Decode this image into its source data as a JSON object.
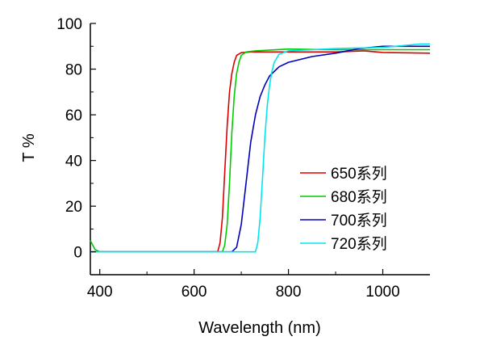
{
  "chart_data": {
    "type": "line",
    "title": "",
    "xlabel": "Wavelength (nm)",
    "ylabel": "T %",
    "xlim": [
      380,
      1100
    ],
    "ylim": [
      -10,
      100
    ],
    "xticks": [
      400,
      600,
      800,
      1000
    ],
    "yticks": [
      0,
      20,
      40,
      60,
      80,
      100
    ],
    "grid": false,
    "legend_position": "center-right",
    "series": [
      {
        "name": "650系列",
        "color": "#dd0000",
        "x": [
          380,
          500,
          600,
          640,
          650,
          655,
          660,
          665,
          670,
          675,
          680,
          685,
          690,
          700,
          720,
          800,
          900,
          960,
          1000,
          1100
        ],
        "y": [
          0,
          0,
          0,
          0,
          0,
          4,
          15,
          35,
          55,
          70,
          78,
          83,
          86,
          87.2,
          87.5,
          87.5,
          87.5,
          88,
          87.3,
          87
        ]
      },
      {
        "name": "680系列",
        "color": "#00cc00",
        "x": [
          380,
          385,
          390,
          400,
          500,
          600,
          660,
          665,
          670,
          675,
          680,
          685,
          690,
          695,
          700,
          710,
          730,
          800,
          900,
          1000,
          1100
        ],
        "y": [
          5,
          3,
          1,
          0,
          0,
          0,
          0,
          3,
          12,
          30,
          52,
          68,
          78,
          83,
          86,
          87.5,
          88,
          88.8,
          88.5,
          88.5,
          88.5
        ]
      },
      {
        "name": "700系列",
        "color": "#0000bb",
        "x": [
          380,
          500,
          600,
          680,
          690,
          700,
          710,
          720,
          730,
          740,
          750,
          760,
          780,
          800,
          850,
          900,
          950,
          1000,
          1100
        ],
        "y": [
          0,
          0,
          0,
          0,
          2,
          12,
          30,
          48,
          60,
          68,
          73,
          77,
          81,
          83,
          85.5,
          87,
          89,
          90,
          90
        ]
      },
      {
        "name": "720系列",
        "color": "#00e5ee",
        "x": [
          380,
          500,
          600,
          730,
          735,
          740,
          745,
          750,
          755,
          760,
          765,
          770,
          780,
          800,
          850,
          900,
          1000,
          1080,
          1100
        ],
        "y": [
          0,
          0,
          0,
          0,
          4,
          15,
          32,
          50,
          64,
          73,
          79,
          83,
          86.5,
          88,
          88.5,
          89,
          89.5,
          91,
          91
        ]
      }
    ]
  }
}
